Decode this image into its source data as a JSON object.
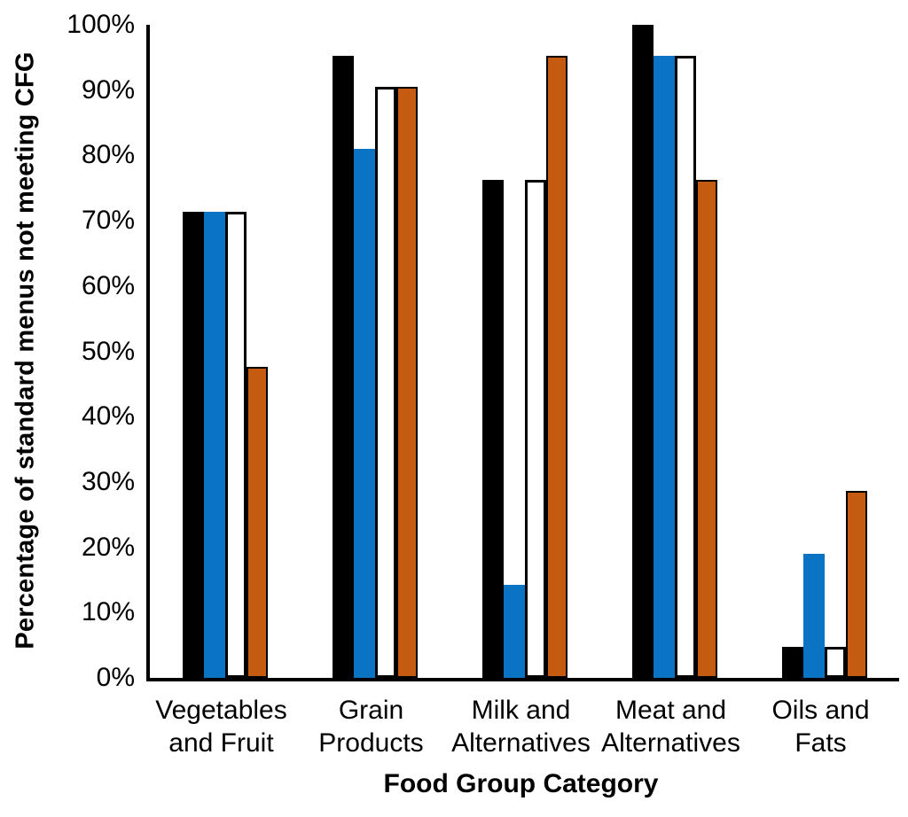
{
  "chart_data": {
    "type": "bar",
    "title": "",
    "xlabel": "Food Group Category",
    "ylabel": "Percentage of standard menus not meeting CFG",
    "categories": [
      "Vegetables and Fruit",
      "Grain Products",
      "Milk and Alternatives",
      "Meat and Alternatives",
      "Oils and Fats"
    ],
    "category_lines": [
      [
        "Vegetables",
        "and Fruit"
      ],
      [
        "Grain",
        "Products"
      ],
      [
        "Milk and",
        "Alternatives"
      ],
      [
        "Meat and",
        "Alternatives"
      ],
      [
        "Oils and",
        "Fats"
      ]
    ],
    "series": [
      {
        "name": "black",
        "color": "#000000",
        "border": null,
        "border_width": 0,
        "values": [
          71.4,
          95.2,
          76.2,
          100.0,
          4.8
        ]
      },
      {
        "name": "blue",
        "color": "#0b73c4",
        "border": null,
        "border_width": 0,
        "values": [
          71.4,
          81.0,
          14.3,
          95.2,
          19.0
        ]
      },
      {
        "name": "white",
        "color": "#ffffff",
        "border": "#000000",
        "border_width": 3,
        "values": [
          71.4,
          90.5,
          76.2,
          95.2,
          4.8
        ]
      },
      {
        "name": "orange",
        "color": "#c55a11",
        "border": "#000000",
        "border_width": 2,
        "values": [
          47.6,
          90.5,
          95.2,
          76.2,
          28.6
        ]
      }
    ],
    "y_ticks": [
      {
        "value": 0,
        "label": "0%"
      },
      {
        "value": 10,
        "label": "10%"
      },
      {
        "value": 20,
        "label": "20%"
      },
      {
        "value": 30,
        "label": "30%"
      },
      {
        "value": 40,
        "label": "40%"
      },
      {
        "value": 50,
        "label": "50%"
      },
      {
        "value": 60,
        "label": "60%"
      },
      {
        "value": 70,
        "label": "70%"
      },
      {
        "value": 80,
        "label": "80%"
      },
      {
        "value": 90,
        "label": "90%"
      },
      {
        "value": 100,
        "label": "100%"
      }
    ],
    "ylim": [
      0,
      100
    ],
    "grid": false,
    "legend": "none",
    "axis_color": "#000000"
  }
}
